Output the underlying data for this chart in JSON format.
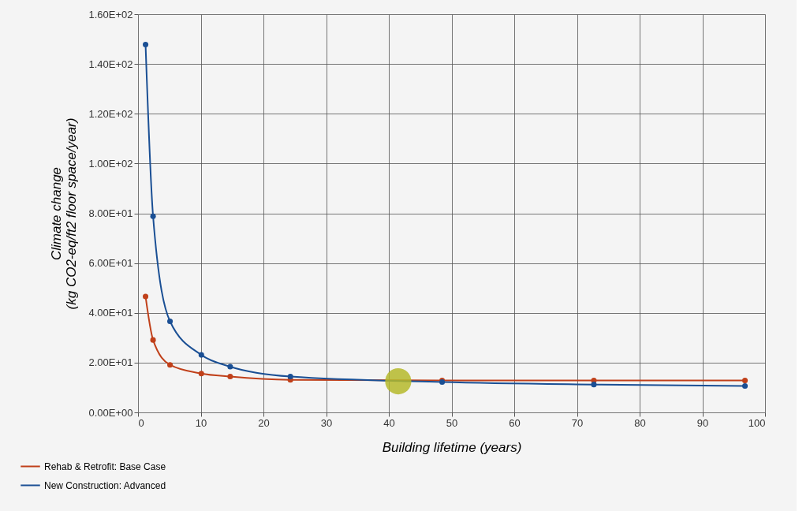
{
  "chart_data": {
    "type": "line",
    "xlabel": "Building lifetime (years)",
    "ylabel": "Climate change\n(kg CO2-eq/ft2 floor space/year)",
    "series": [
      {
        "name": "Rehab & Retrofit: Base Case",
        "color": "#c0401a",
        "x": [
          1.2,
          2.4,
          5.1,
          10.1,
          14.7,
          24.3,
          48.5,
          72.7,
          96.8
        ],
        "values": [
          46.6,
          29.1,
          19.1,
          15.6,
          14.4,
          13.1,
          12.8,
          12.8,
          12.8
        ]
      },
      {
        "name": "New Construction: Advanced",
        "color": "#1a4f94",
        "x": [
          1.2,
          2.4,
          5.1,
          10.1,
          14.7,
          24.3,
          48.5,
          72.7,
          96.8
        ],
        "values": [
          147.8,
          78.8,
          36.6,
          23.1,
          18.4,
          14.4,
          12.2,
          11.2,
          10.6
        ]
      },
      {
        "type": "scatter",
        "color": "#b5b82a",
        "x": [
          41.5
        ],
        "values": [
          12.5
        ]
      }
    ],
    "xlim": [
      0,
      100
    ],
    "xticks": [
      0,
      10,
      20,
      30,
      40,
      50,
      60,
      70,
      80,
      90,
      100
    ],
    "ylim": [
      0,
      160
    ],
    "yticks": [
      {
        "value": 0,
        "label": "0.00E+00"
      },
      {
        "value": 20,
        "label": "2.00E+01"
      },
      {
        "value": 40,
        "label": "4.00E+01"
      },
      {
        "value": 60,
        "label": "6.00E+01"
      },
      {
        "value": 80,
        "label": "8.00E+01"
      },
      {
        "value": 100,
        "label": "1.00E+02"
      },
      {
        "value": 120,
        "label": "1.20E+02"
      },
      {
        "value": 140,
        "label": "1.40E+02"
      },
      {
        "value": 160,
        "label": "1.60E+02"
      }
    ],
    "grid": true,
    "legend": "bottom left",
    "marker": "circle"
  }
}
